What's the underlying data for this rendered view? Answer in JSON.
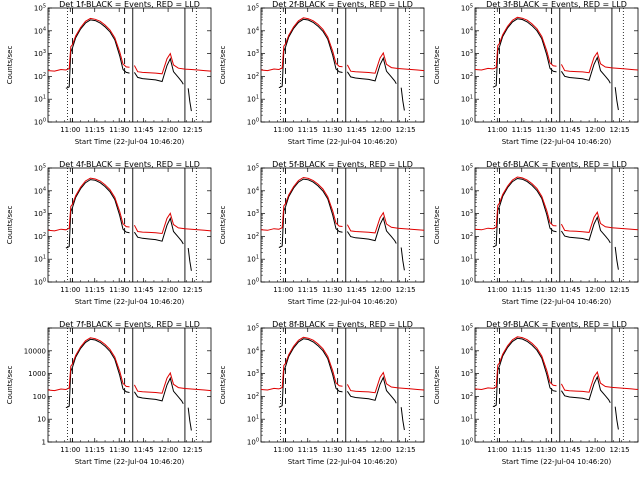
{
  "colors": {
    "events": "#000000",
    "lld": "#e00000",
    "axes": "#000000",
    "background": "#ffffff"
  },
  "panels": [
    {
      "title": "Det 1f-BLACK = Events, RED = LLD",
      "ylabel": "Counts/sec",
      "xlabel": "Start Time (22-Jul-04 10:46:20)"
    },
    {
      "title": "Det 2f-BLACK = Events, RED = LLD",
      "ylabel": "Counts/sec",
      "xlabel": "Start Time (22-Jul-04 10:46:20)"
    },
    {
      "title": "Det 3f-BLACK = Events, RED = LLD",
      "ylabel": "Counts/sec",
      "xlabel": "Start Time (22-Jul-04 10:46:20)"
    },
    {
      "title": "Det 4f-BLACK = Events, RED = LLD",
      "ylabel": "Counts/sec",
      "xlabel": "Start Time (22-Jul-04 10:46:20)"
    },
    {
      "title": "Det 5f-BLACK = Events, RED = LLD",
      "ylabel": "Counts/sec",
      "xlabel": "Start Time (22-Jul-04 10:46:20)"
    },
    {
      "title": "Det 6f-BLACK = Events, RED = LLD",
      "ylabel": "Counts/sec",
      "xlabel": "Start Time (22-Jul-04 10:46:20)"
    },
    {
      "title": "Det 7f-BLACK = Events, RED = LLD",
      "ylabel": "Counts/sec",
      "xlabel": "Start Time (22-Jul-04 10:46:20)"
    },
    {
      "title": "Det 8f-BLACK = Events, RED = LLD",
      "ylabel": "Counts/sec",
      "xlabel": "Start Time (22-Jul-04 10:46:20)"
    },
    {
      "title": "Det 9f-BLACK = Events, RED = LLD",
      "ylabel": "Counts/sec",
      "xlabel": "Start Time (22-Jul-04 10:46:20)"
    }
  ],
  "chart_data": {
    "type": "line",
    "count": 9,
    "x_ticks": [
      "11:00",
      "11:15",
      "11:30",
      "11:45",
      "12:00",
      "12:15"
    ],
    "x_tick_minutes": [
      13.67,
      28.67,
      43.67,
      58.67,
      73.67,
      88.67
    ],
    "xlim_minutes": [
      0,
      100
    ],
    "y_log": true,
    "ylim": [
      1,
      100000
    ],
    "y_tick_labels_exp": [
      "10^0",
      "10^1",
      "10^2",
      "10^3",
      "10^4",
      "10^5"
    ],
    "y_tick_labels_plain": [
      "1",
      "10",
      "100",
      "1000",
      "10000"
    ],
    "panel7_plain_labels": true,
    "markers": {
      "dotted_minutes": [
        12,
        91
      ],
      "dashed_minutes": [
        15,
        47
      ],
      "solid_minutes": [
        52,
        84
      ]
    },
    "series": [
      {
        "name": "Events",
        "segments": [
          [
            [
              11,
              30
            ],
            [
              12,
              32
            ],
            [
              13,
              35
            ],
            [
              14,
              1200
            ],
            [
              15,
              1800
            ],
            [
              17,
              5000
            ],
            [
              20,
              12000
            ],
            [
              23,
              22000
            ],
            [
              26,
              30000
            ],
            [
              29,
              28000
            ],
            [
              32,
              22000
            ],
            [
              35,
              15000
            ],
            [
              38,
              9000
            ],
            [
              41,
              4000
            ],
            [
              44,
              800
            ],
            [
              46,
              200
            ],
            [
              48,
              150
            ],
            [
              50,
              140
            ]
          ],
          [
            [
              53,
              150
            ],
            [
              55,
              90
            ],
            [
              58,
              80
            ],
            [
              62,
              75
            ],
            [
              66,
              70
            ],
            [
              70,
              60
            ],
            [
              73,
              300
            ],
            [
              75,
              600
            ],
            [
              77,
              160
            ],
            [
              80,
              90
            ],
            [
              82,
              60
            ],
            [
              83,
              45
            ]
          ],
          [
            [
              86,
              30
            ],
            [
              87,
              8
            ],
            [
              88,
              3
            ]
          ]
        ]
      },
      {
        "name": "LLD",
        "segments": [
          [
            [
              0,
              180
            ],
            [
              4,
              170
            ],
            [
              8,
              200
            ],
            [
              11,
              190
            ],
            [
              13,
              220
            ],
            [
              14,
              2000
            ],
            [
              15,
              2500
            ],
            [
              17,
              6000
            ],
            [
              20,
              14000
            ],
            [
              23,
              26000
            ],
            [
              26,
              35000
            ],
            [
              29,
              32000
            ],
            [
              32,
              26000
            ],
            [
              35,
              18000
            ],
            [
              38,
              11000
            ],
            [
              41,
              5000
            ],
            [
              44,
              1200
            ],
            [
              46,
              350
            ],
            [
              48,
              260
            ],
            [
              50,
              250
            ]
          ],
          [
            [
              53,
              300
            ],
            [
              55,
              160
            ],
            [
              58,
              150
            ],
            [
              62,
              145
            ],
            [
              66,
              140
            ],
            [
              70,
              130
            ],
            [
              73,
              600
            ],
            [
              75,
              1000
            ],
            [
              77,
              320
            ],
            [
              80,
              230
            ],
            [
              84,
              210
            ],
            [
              88,
              200
            ],
            [
              92,
              190
            ],
            [
              96,
              180
            ],
            [
              100,
              170
            ]
          ]
        ]
      }
    ]
  }
}
